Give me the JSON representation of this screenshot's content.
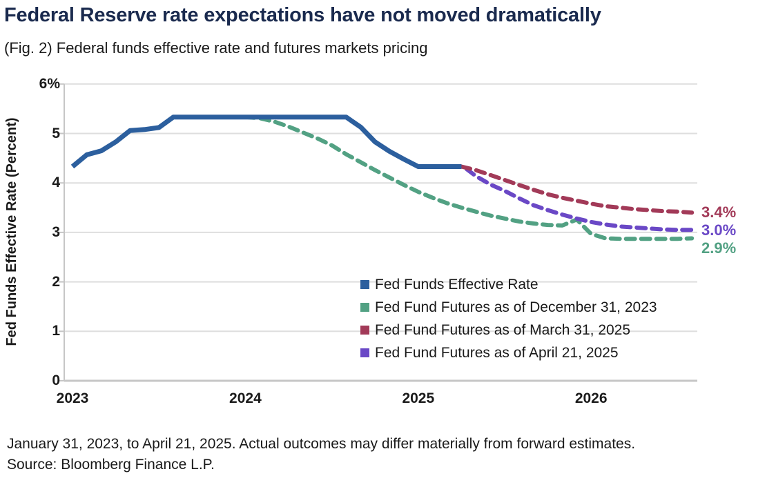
{
  "header": {
    "title": "Federal Reserve rate expectations have not moved dramatically",
    "subtitle": "(Fig. 2) Federal funds effective rate and futures markets pricing"
  },
  "footer": {
    "line1": "January 31, 2023, to April 21, 2025. Actual outcomes may differ materially from forward estimates.",
    "line2": "Source: Bloomberg Finance L.P."
  },
  "colors": {
    "blue": "#2c5f9e",
    "green": "#52a183",
    "maroon": "#a23a58",
    "purple": "#6a48c6",
    "title_navy": "#1a2a4e",
    "text": "#1a1a1a",
    "grid": "#dedede",
    "axis": "#c6c6c6"
  },
  "chart_data": {
    "type": "line",
    "title": "Federal Reserve rate expectations have not moved dramatically",
    "subtitle": "(Fig. 2) Federal funds effective rate and futures markets pricing",
    "xlabel": "",
    "ylabel": "Fed Funds Effective Rate (Percent)",
    "ylim": [
      0,
      6
    ],
    "xlim": [
      2023.0,
      2026.6
    ],
    "grid": "horizontal",
    "legend_position": "inside-lower-right",
    "yticks": [
      {
        "value": 6,
        "label": "6%"
      },
      {
        "value": 5,
        "label": "5"
      },
      {
        "value": 4,
        "label": "4"
      },
      {
        "value": 3,
        "label": "3"
      },
      {
        "value": 2,
        "label": "2"
      },
      {
        "value": 1,
        "label": "1"
      },
      {
        "value": 0,
        "label": "0"
      }
    ],
    "xticks": [
      {
        "value": 2023,
        "label": "2023"
      },
      {
        "value": 2024,
        "label": "2024"
      },
      {
        "value": 2025,
        "label": "2025"
      },
      {
        "value": 2026,
        "label": "2026"
      }
    ],
    "series": [
      {
        "name": "Fed Funds Effective Rate",
        "color_key": "blue",
        "line_style": "solid",
        "end_label": null,
        "x": [
          2023.0,
          2023.083,
          2023.167,
          2023.25,
          2023.333,
          2023.417,
          2023.5,
          2023.583,
          2023.667,
          2023.75,
          2023.833,
          2023.917,
          2024.0,
          2024.083,
          2024.167,
          2024.25,
          2024.333,
          2024.417,
          2024.5,
          2024.583,
          2024.667,
          2024.75,
          2024.833,
          2024.917,
          2025.0,
          2025.083,
          2025.167,
          2025.25
        ],
        "y": [
          4.33,
          4.57,
          4.65,
          4.83,
          5.06,
          5.08,
          5.12,
          5.33,
          5.33,
          5.33,
          5.33,
          5.33,
          5.33,
          5.33,
          5.33,
          5.33,
          5.33,
          5.33,
          5.33,
          5.33,
          5.13,
          4.83,
          4.64,
          4.48,
          4.33,
          4.33,
          4.33,
          4.33
        ]
      },
      {
        "name": "Fed Fund Futures as of December 31, 2023",
        "color_key": "green",
        "line_style": "dashed",
        "end_label": "2.9%",
        "x": [
          2024.0,
          2024.083,
          2024.167,
          2024.25,
          2024.333,
          2024.417,
          2024.5,
          2024.583,
          2024.667,
          2024.75,
          2024.833,
          2024.917,
          2025.0,
          2025.083,
          2025.167,
          2025.25,
          2025.333,
          2025.417,
          2025.5,
          2025.583,
          2025.667,
          2025.75,
          2025.833,
          2025.917,
          2026.0,
          2026.083,
          2026.167,
          2026.333,
          2026.5,
          2026.583
        ],
        "y": [
          5.33,
          5.31,
          5.24,
          5.14,
          5.02,
          4.9,
          4.76,
          4.58,
          4.42,
          4.26,
          4.11,
          3.96,
          3.82,
          3.7,
          3.59,
          3.5,
          3.42,
          3.34,
          3.28,
          3.22,
          3.18,
          3.15,
          3.14,
          3.26,
          2.97,
          2.88,
          2.87,
          2.87,
          2.87,
          2.88
        ]
      },
      {
        "name": "Fed Fund Futures as of March 31, 2025",
        "color_key": "maroon",
        "line_style": "dashed",
        "end_label": "3.4%",
        "x": [
          2025.25,
          2025.333,
          2025.417,
          2025.5,
          2025.583,
          2025.667,
          2025.75,
          2025.833,
          2025.917,
          2026.0,
          2026.083,
          2026.167,
          2026.25,
          2026.333,
          2026.417,
          2026.5,
          2026.583
        ],
        "y": [
          4.33,
          4.26,
          4.16,
          4.06,
          3.96,
          3.86,
          3.77,
          3.7,
          3.64,
          3.58,
          3.53,
          3.5,
          3.47,
          3.45,
          3.43,
          3.42,
          3.4
        ]
      },
      {
        "name": "Fed Fund Futures as of April 21, 2025",
        "color_key": "purple",
        "line_style": "dashed",
        "end_label": "3.0%",
        "x": [
          2025.28,
          2025.333,
          2025.417,
          2025.5,
          2025.583,
          2025.667,
          2025.75,
          2025.833,
          2025.917,
          2026.0,
          2026.083,
          2026.167,
          2026.25,
          2026.333,
          2026.417,
          2026.5,
          2026.583
        ],
        "y": [
          4.28,
          4.14,
          3.97,
          3.84,
          3.69,
          3.55,
          3.45,
          3.36,
          3.28,
          3.21,
          3.16,
          3.12,
          3.1,
          3.08,
          3.06,
          3.05,
          3.05
        ]
      }
    ]
  }
}
